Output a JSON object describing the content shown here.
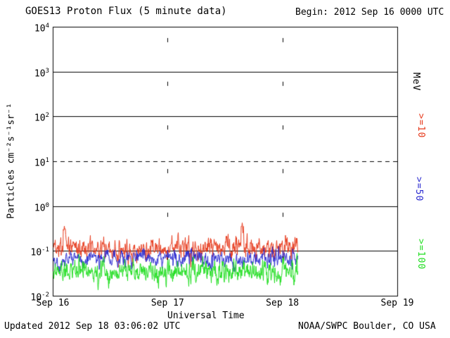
{
  "chart_data": {
    "type": "line",
    "title": "GOES13 Proton Flux (5 minute data)",
    "begin": "Begin: 2012 Sep 16 0000 UTC",
    "xlabel": "Universal Time",
    "ylabel": "Particles  cm⁻²s⁻¹sr⁻¹",
    "unit_label": "MeV",
    "x_ticks": [
      "Sep 16",
      "Sep 17",
      "Sep 18",
      "Sep 19"
    ],
    "x_tick_days": [
      0,
      1,
      2,
      3
    ],
    "x_range_days": [
      0,
      3
    ],
    "y_tick_exponents": [
      4,
      3,
      2,
      1,
      0,
      -1,
      -2
    ],
    "y_range_log10": [
      -2,
      4
    ],
    "grid_solid_log10": [
      3,
      2,
      0,
      -1
    ],
    "threshold_dashed_log10": 1,
    "vertical_grid_days": [
      1,
      2
    ],
    "data_end_day": 2.13,
    "series": [
      {
        "name": ">=10",
        "color": "#e6391b",
        "mean_log10": -0.93,
        "amp_log10": 0.2,
        "approx_flux_range": [
          0.07,
          0.35
        ],
        "seed": 11,
        "spikes": [
          {
            "day": 0.1,
            "log10": -0.52
          },
          {
            "day": 1.65,
            "log10": -0.45
          }
        ]
      },
      {
        "name": ">=50",
        "color": "#2a2ad0",
        "mean_log10": -1.18,
        "amp_log10": 0.16,
        "approx_flux_range": [
          0.03,
          0.11
        ],
        "seed": 22,
        "spikes": []
      },
      {
        "name": ">=100",
        "color": "#1fdd1f",
        "mean_log10": -1.47,
        "amp_log10": 0.21,
        "approx_flux_range": [
          0.013,
          0.08
        ],
        "seed": 33,
        "spikes": []
      }
    ],
    "footer": {
      "updated": "Updated 2012 Sep 18 03:06:02 UTC",
      "source": "NOAA/SWPC Boulder, CO USA"
    }
  }
}
